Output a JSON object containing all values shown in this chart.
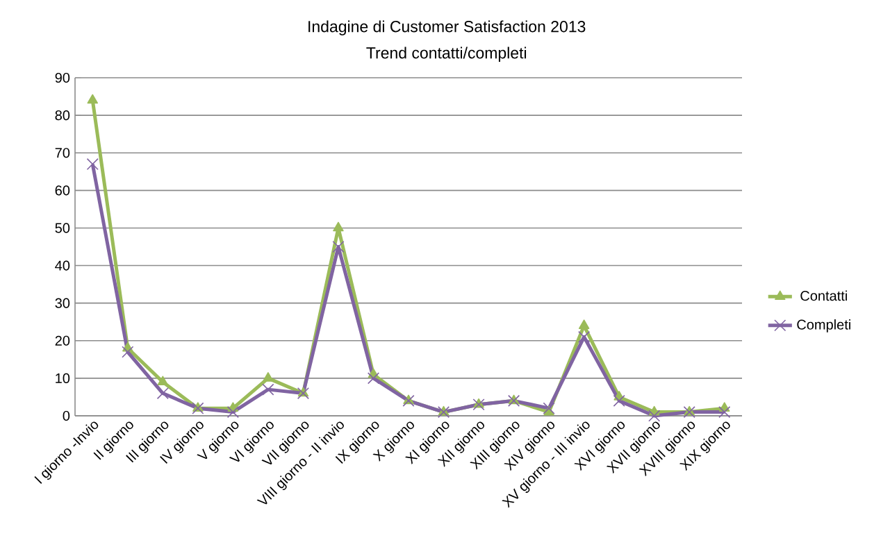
{
  "chart_data": {
    "type": "line",
    "title": "Indagine di Customer Satisfaction 2013",
    "subtitle": "Trend contatti/completi",
    "categories": [
      "I giorno -Invio",
      "II giorno",
      "III giorno",
      "IV giorno",
      "V giorno",
      "VI giorno",
      "VII giorno",
      "VIII giorno - II invio",
      "IX giorno",
      "X giorno",
      "XI giorno",
      "XII giorno",
      "XIII giorno",
      "XIV giorno",
      "XV giorno - III invio",
      "XVI giorno",
      "XVII giorno",
      "XVIII giorno",
      "XIX giorno"
    ],
    "series": [
      {
        "name": "Contatti",
        "color": "#9bbb59",
        "marker": "triangle",
        "values": [
          84,
          18,
          9,
          2,
          2,
          10,
          6,
          50,
          11,
          4,
          1,
          3,
          4,
          1,
          24,
          5,
          1,
          1,
          2
        ]
      },
      {
        "name": "Completi",
        "color": "#8064a2",
        "marker": "cross",
        "values": [
          67,
          17,
          6,
          2,
          1,
          7,
          6,
          45,
          10,
          4,
          1,
          3,
          4,
          2,
          21,
          4,
          0,
          1,
          1
        ]
      }
    ],
    "ylim": [
      0,
      90
    ],
    "yticks": [
      0,
      10,
      20,
      30,
      40,
      50,
      60,
      70,
      80,
      90
    ],
    "grid": "y",
    "legend": "right",
    "line_style": "solid"
  }
}
